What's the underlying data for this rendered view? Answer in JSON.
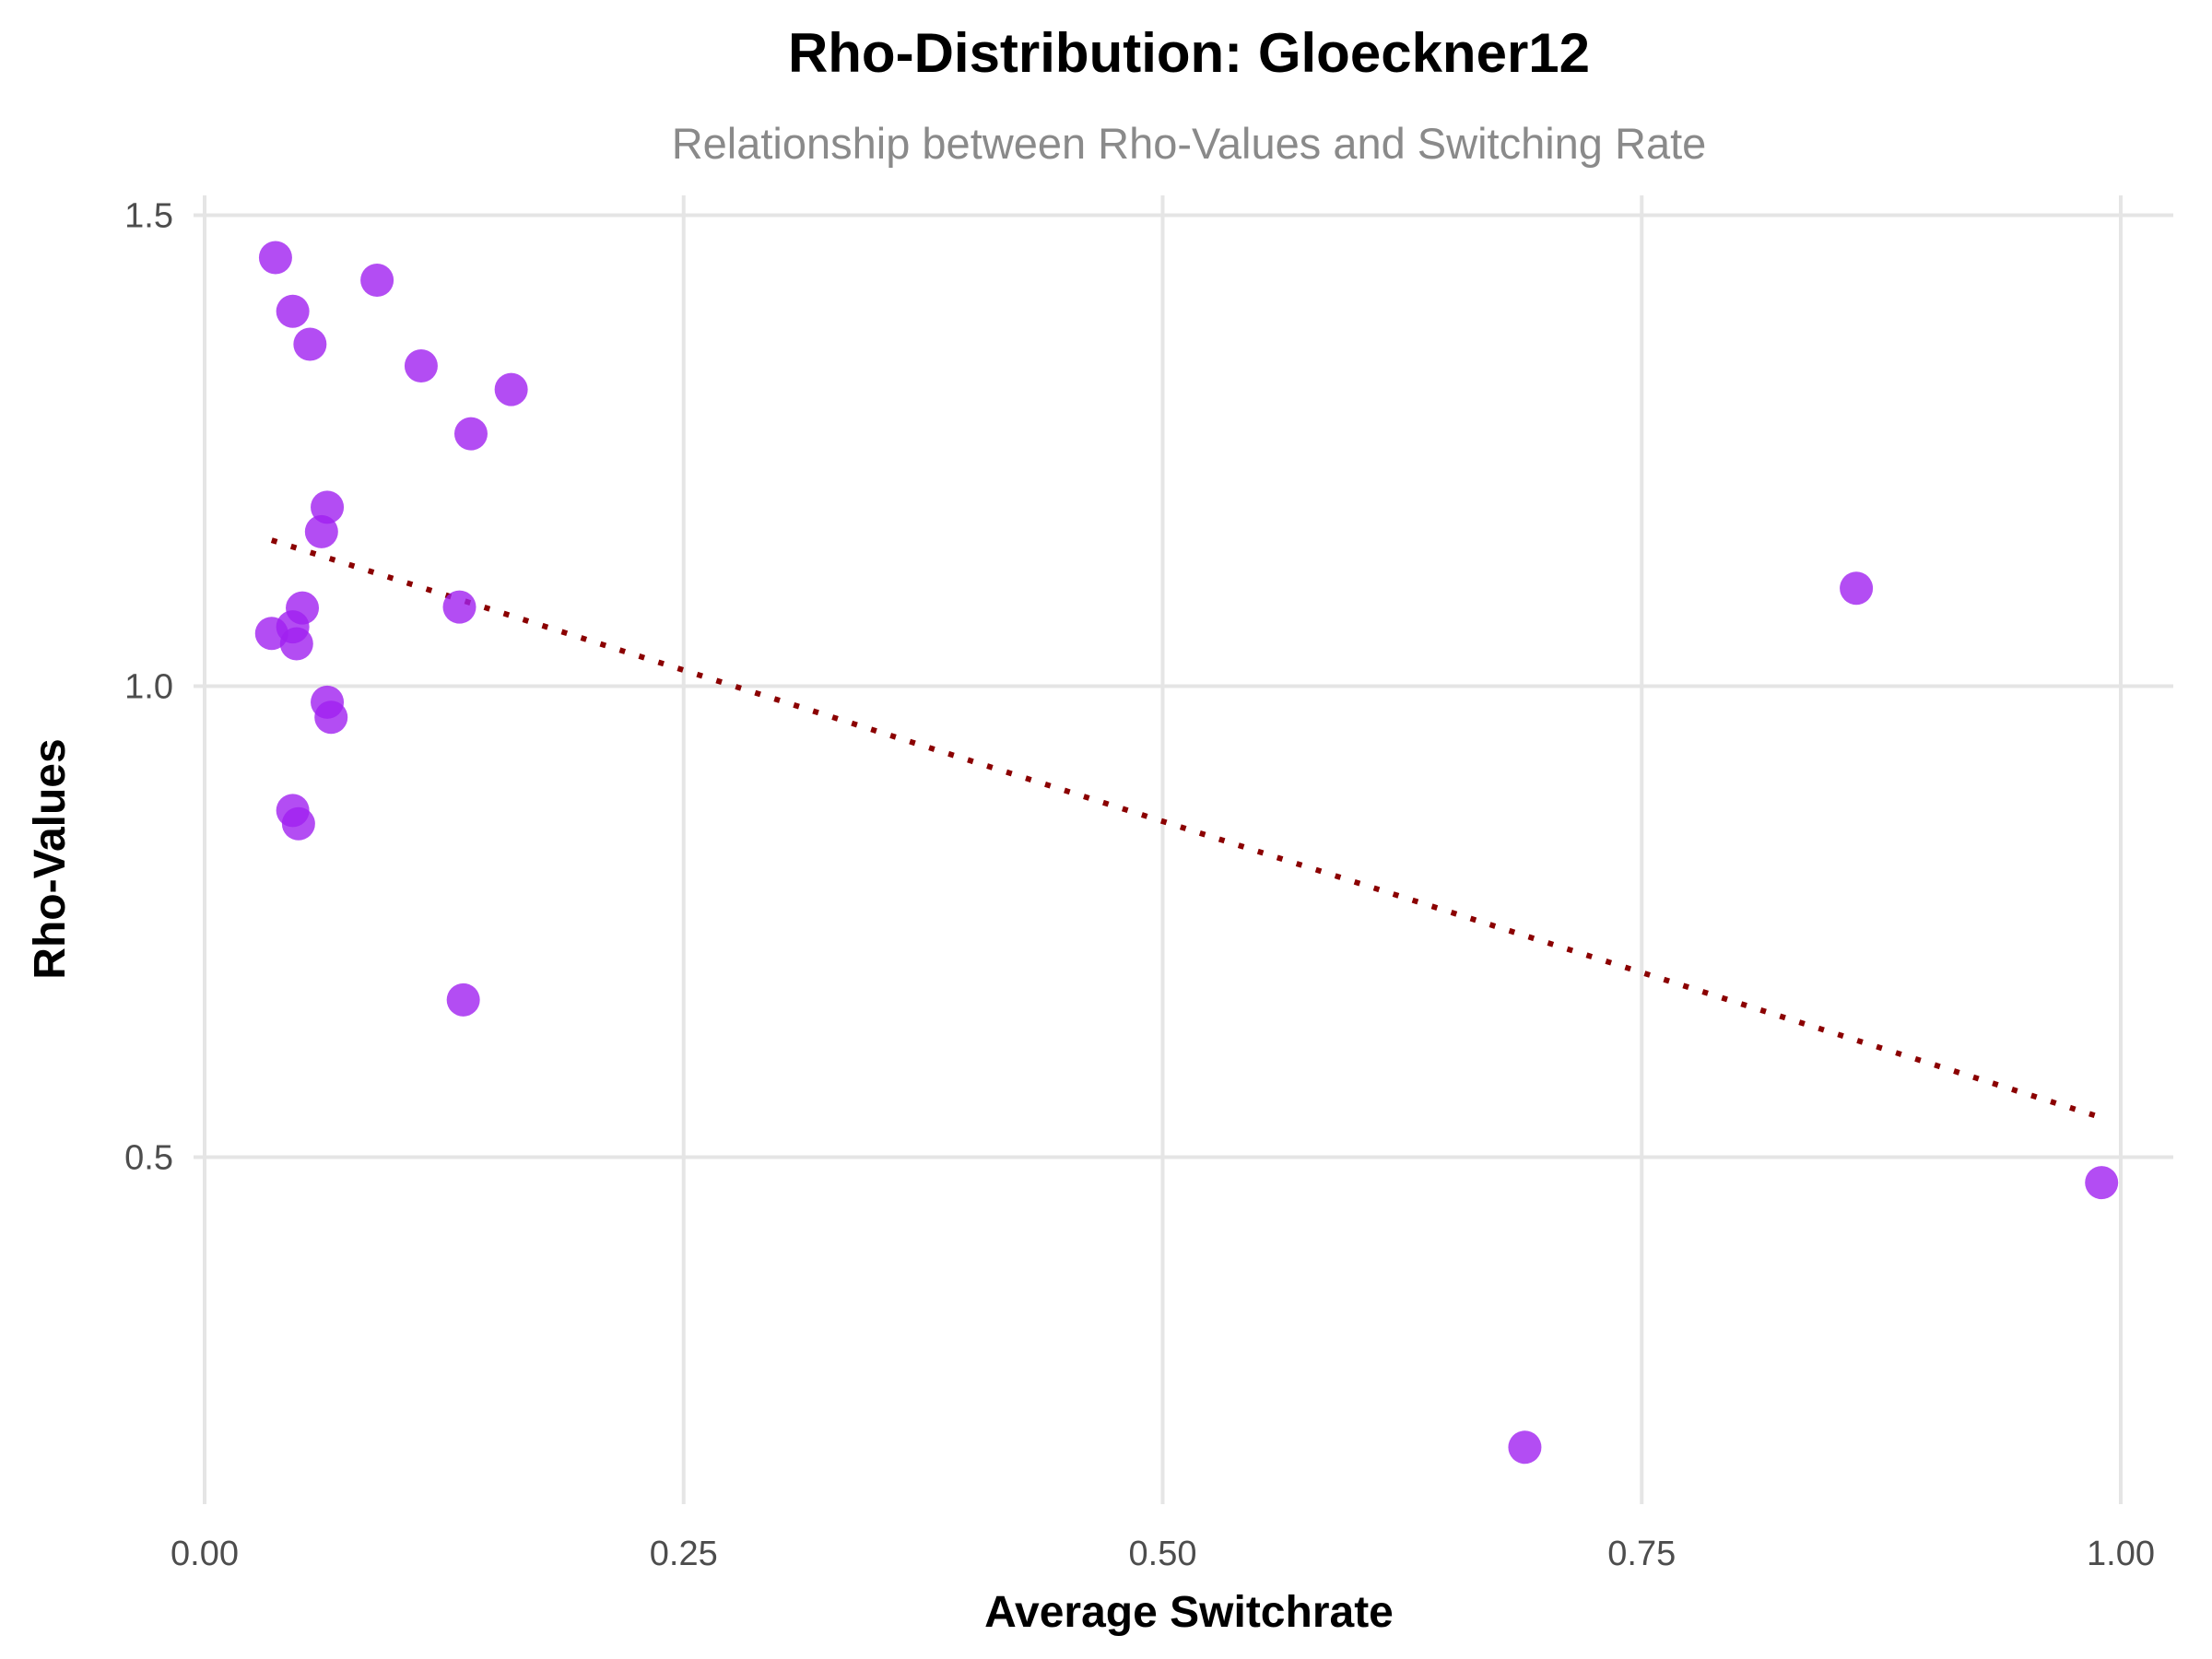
{
  "chart_data": {
    "type": "scatter",
    "title": "Rho-Distribution: Gloeckner12",
    "subtitle": "Relationship between Rho-Values and Switching Rate",
    "xlabel": "Average Switchrate",
    "ylabel": "Rho-Values",
    "xlim": [
      0.0,
      1.0
    ],
    "ylim": [
      0.15,
      1.5
    ],
    "x_ticks": [
      0.0,
      0.25,
      0.5,
      0.75,
      1.0
    ],
    "x_tick_labels": [
      "0.00",
      "0.25",
      "0.50",
      "0.75",
      "1.00"
    ],
    "y_ticks": [
      0.5,
      1.0,
      1.5
    ],
    "y_tick_labels": [
      "0.5",
      "1.0",
      "1.5"
    ],
    "grid": true,
    "legend": "none",
    "colors": {
      "points": "#a020f0",
      "trend": "#8b0000"
    },
    "series": [
      {
        "points": [
          {
            "x": 0.037,
            "y": 1.455
          },
          {
            "x": 0.046,
            "y": 1.398
          },
          {
            "x": 0.055,
            "y": 1.363
          },
          {
            "x": 0.09,
            "y": 1.431
          },
          {
            "x": 0.113,
            "y": 1.34
          },
          {
            "x": 0.16,
            "y": 1.315
          },
          {
            "x": 0.139,
            "y": 1.268
          },
          {
            "x": 0.064,
            "y": 1.19
          },
          {
            "x": 0.061,
            "y": 1.164
          },
          {
            "x": 0.051,
            "y": 1.083
          },
          {
            "x": 0.133,
            "y": 1.084
          },
          {
            "x": 0.035,
            "y": 1.056
          },
          {
            "x": 0.046,
            "y": 1.063
          },
          {
            "x": 0.048,
            "y": 1.045
          },
          {
            "x": 0.064,
            "y": 0.983
          },
          {
            "x": 0.066,
            "y": 0.967
          },
          {
            "x": 0.046,
            "y": 0.868
          },
          {
            "x": 0.049,
            "y": 0.854
          },
          {
            "x": 0.135,
            "y": 0.667
          },
          {
            "x": 0.862,
            "y": 1.104
          },
          {
            "x": 0.99,
            "y": 0.473
          },
          {
            "x": 0.689,
            "y": 0.192
          }
        ]
      }
    ],
    "trend_line": {
      "style": "dotted",
      "x": [
        0.035,
        0.99
      ],
      "y": [
        1.155,
        0.542
      ]
    }
  }
}
